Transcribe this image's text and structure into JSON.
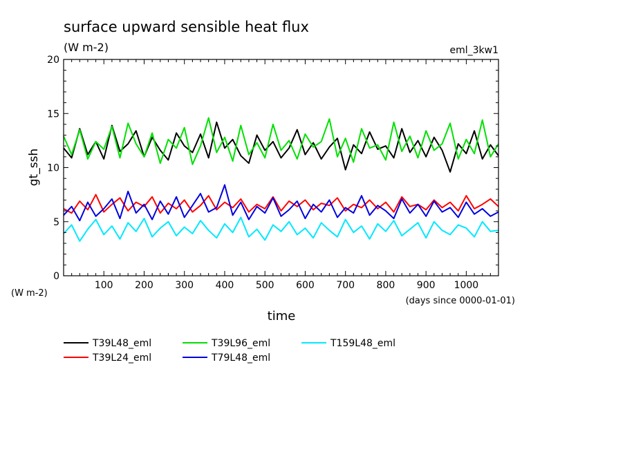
{
  "chart_data": {
    "type": "line",
    "title": "surface upward sensible heat flux",
    "subtitle": "(W m-2)",
    "tag": "eml_3kw1",
    "xlabel": "time",
    "x_units": "(days since 0000-01-01)",
    "ylabel": "gt_ssh",
    "y_units": "(W m-2)",
    "xlim": [
      0,
      1080
    ],
    "ylim": [
      0,
      20
    ],
    "x_ticks": [
      100,
      200,
      300,
      400,
      500,
      600,
      700,
      800,
      900,
      1000
    ],
    "y_ticks": [
      0,
      5,
      10,
      15,
      20
    ],
    "grid": false,
    "legend_position": "bottom-left",
    "x": [
      0,
      20,
      40,
      60,
      80,
      100,
      120,
      140,
      160,
      180,
      200,
      220,
      240,
      260,
      280,
      300,
      320,
      340,
      360,
      380,
      400,
      420,
      440,
      460,
      480,
      500,
      520,
      540,
      560,
      580,
      600,
      620,
      640,
      660,
      680,
      700,
      720,
      740,
      760,
      780,
      800,
      820,
      840,
      860,
      880,
      900,
      920,
      940,
      960,
      980,
      1000,
      1020,
      1040,
      1060,
      1080
    ],
    "series": [
      {
        "name": "T39L48_eml",
        "color": "#000000",
        "values": [
          11.8,
          10.9,
          13.6,
          11.2,
          12.4,
          10.8,
          13.9,
          11.5,
          12.2,
          13.4,
          11.0,
          12.8,
          11.6,
          10.7,
          13.2,
          12.0,
          11.4,
          13.1,
          10.9,
          14.2,
          11.8,
          12.6,
          11.1,
          10.4,
          13.0,
          11.6,
          12.4,
          10.9,
          11.8,
          13.5,
          11.2,
          12.3,
          10.8,
          11.9,
          12.7,
          9.8,
          12.1,
          11.3,
          13.3,
          11.7,
          12.0,
          10.9,
          13.6,
          11.4,
          12.5,
          11.0,
          12.8,
          11.6,
          9.6,
          12.2,
          11.3,
          13.4,
          10.8,
          12.1,
          11.1
        ]
      },
      {
        "name": "T39L96_eml",
        "color": "#00e000",
        "values": [
          12.9,
          11.2,
          13.5,
          10.8,
          12.4,
          11.7,
          13.8,
          10.9,
          14.1,
          12.2,
          11.0,
          13.2,
          10.4,
          12.6,
          11.8,
          13.7,
          10.3,
          12.0,
          14.6,
          11.4,
          12.8,
          10.6,
          13.9,
          11.2,
          12.3,
          10.9,
          14.0,
          11.6,
          12.5,
          10.8,
          13.1,
          11.9,
          12.4,
          14.5,
          11.0,
          12.7,
          10.5,
          13.6,
          11.8,
          12.1,
          10.7,
          14.2,
          11.5,
          12.9,
          10.9,
          13.4,
          11.6,
          12.2,
          14.1,
          10.8,
          12.6,
          11.3,
          14.4,
          11.0,
          12.2
        ]
      },
      {
        "name": "T159L48_eml",
        "color": "#00e8ff",
        "values": [
          3.9,
          4.7,
          3.2,
          4.3,
          5.2,
          3.8,
          4.6,
          3.4,
          4.9,
          4.1,
          5.3,
          3.6,
          4.4,
          5.0,
          3.7,
          4.5,
          3.9,
          5.1,
          4.2,
          3.5,
          4.8,
          4.0,
          5.4,
          3.6,
          4.3,
          3.3,
          4.7,
          4.1,
          5.0,
          3.8,
          4.4,
          3.5,
          4.9,
          4.2,
          3.6,
          5.2,
          4.0,
          4.6,
          3.4,
          4.8,
          4.1,
          5.1,
          3.7,
          4.3,
          4.9,
          3.5,
          5.0,
          4.2,
          3.8,
          4.7,
          4.4,
          3.6,
          5.0,
          4.1,
          4.2
        ]
      },
      {
        "name": "T39L24_eml",
        "color": "#ff0000",
        "values": [
          6.2,
          5.8,
          6.9,
          6.1,
          7.5,
          5.9,
          6.6,
          7.2,
          6.0,
          6.8,
          6.4,
          7.3,
          5.8,
          6.7,
          6.2,
          7.0,
          5.9,
          6.5,
          7.4,
          6.1,
          6.8,
          6.3,
          7.1,
          5.9,
          6.6,
          6.2,
          7.3,
          6.0,
          6.9,
          6.4,
          7.0,
          6.1,
          6.7,
          6.5,
          7.2,
          6.0,
          6.6,
          6.3,
          7.0,
          6.2,
          6.8,
          5.9,
          7.3,
          6.4,
          6.6,
          6.1,
          7.0,
          6.3,
          6.8,
          6.0,
          7.4,
          6.2,
          6.6,
          7.1,
          6.4
        ]
      },
      {
        "name": "T79L48_eml",
        "color": "#0000e0",
        "values": [
          5.6,
          6.4,
          5.1,
          6.8,
          5.5,
          6.2,
          7.1,
          5.3,
          7.8,
          5.8,
          6.6,
          5.2,
          6.9,
          5.7,
          7.3,
          5.4,
          6.5,
          7.6,
          5.9,
          6.3,
          8.4,
          5.6,
          6.8,
          5.2,
          6.4,
          5.8,
          7.2,
          5.5,
          6.1,
          6.9,
          5.3,
          6.6,
          5.9,
          7.0,
          5.4,
          6.3,
          5.8,
          7.4,
          5.6,
          6.5,
          6.0,
          5.3,
          7.1,
          5.8,
          6.6,
          5.5,
          6.9,
          5.9,
          6.3,
          5.4,
          6.8,
          5.7,
          6.2,
          5.5,
          5.9
        ]
      }
    ]
  }
}
